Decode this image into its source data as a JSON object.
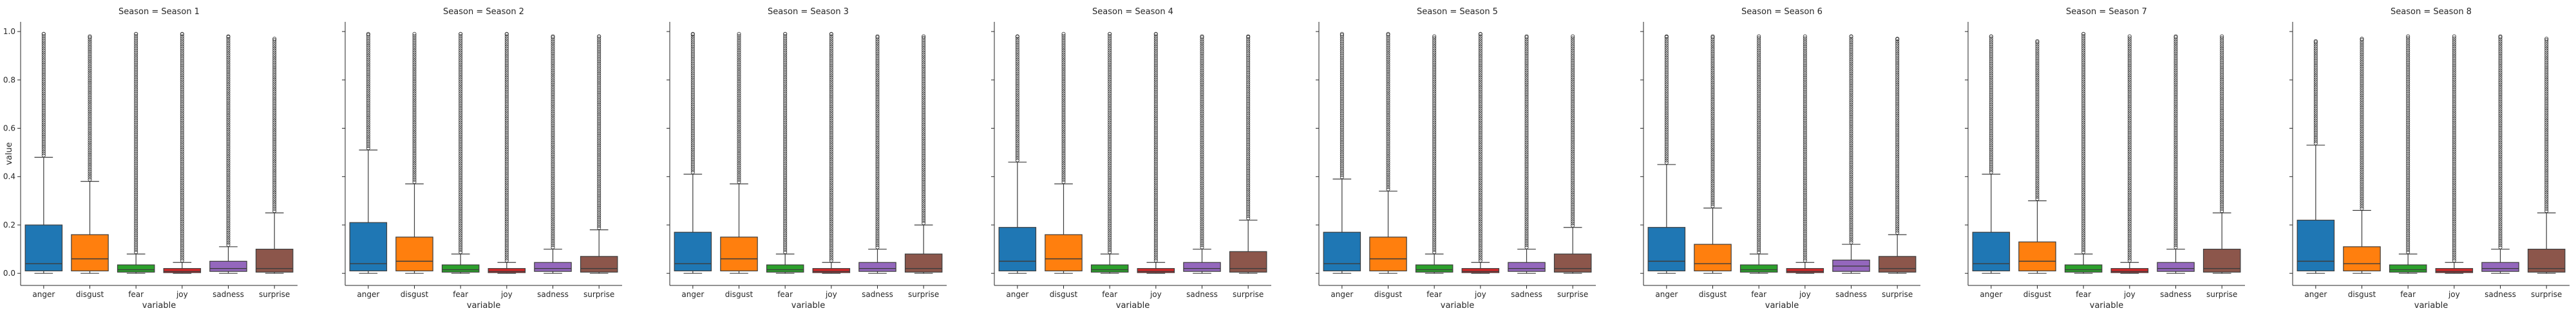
{
  "chart_data": {
    "type": "box",
    "facet_titles": [
      "Season = Season 1",
      "Season = Season 2",
      "Season = Season 3",
      "Season = Season 4",
      "Season = Season 5",
      "Season = Season 6",
      "Season = Season 7",
      "Season = Season 8"
    ],
    "xlabel": "variable",
    "ylabel": "value",
    "categories": [
      "anger",
      "disgust",
      "fear",
      "joy",
      "sadness",
      "surprise"
    ],
    "yticks": [
      "0.0",
      "0.2",
      "0.4",
      "0.6",
      "0.8",
      "1.0"
    ],
    "ylim": [
      -0.05,
      1.04
    ],
    "colors": {
      "anger": "#1f77b4",
      "disgust": "#ff7f0e",
      "fear": "#2ca02c",
      "joy": "#d62728",
      "sadness": "#9467bd",
      "surprise": "#8c564b"
    },
    "panels": [
      {
        "boxes": {
          "anger": {
            "q1": 0.01,
            "median": 0.04,
            "q3": 0.2,
            "whisker_low": 0.0,
            "whisker_high": 0.48,
            "outliers_from": 0.48,
            "outliers_to": 0.99
          },
          "disgust": {
            "q1": 0.01,
            "median": 0.06,
            "q3": 0.16,
            "whisker_low": 0.0,
            "whisker_high": 0.38,
            "outliers_from": 0.38,
            "outliers_to": 0.98
          },
          "fear": {
            "q1": 0.005,
            "median": 0.015,
            "q3": 0.035,
            "whisker_low": 0.0,
            "whisker_high": 0.08,
            "outliers_from": 0.08,
            "outliers_to": 0.99
          },
          "joy": {
            "q1": 0.003,
            "median": 0.008,
            "q3": 0.02,
            "whisker_low": 0.0,
            "whisker_high": 0.045,
            "outliers_from": 0.045,
            "outliers_to": 0.99
          },
          "sadness": {
            "q1": 0.008,
            "median": 0.02,
            "q3": 0.05,
            "whisker_low": 0.0,
            "whisker_high": 0.11,
            "outliers_from": 0.11,
            "outliers_to": 0.98
          },
          "surprise": {
            "q1": 0.005,
            "median": 0.02,
            "q3": 0.1,
            "whisker_low": 0.0,
            "whisker_high": 0.25,
            "outliers_from": 0.25,
            "outliers_to": 0.97
          }
        }
      },
      {
        "boxes": {
          "anger": {
            "q1": 0.01,
            "median": 0.04,
            "q3": 0.21,
            "whisker_low": 0.0,
            "whisker_high": 0.51,
            "outliers_from": 0.51,
            "outliers_to": 0.99
          },
          "disgust": {
            "q1": 0.01,
            "median": 0.05,
            "q3": 0.15,
            "whisker_low": 0.0,
            "whisker_high": 0.37,
            "outliers_from": 0.37,
            "outliers_to": 0.99
          },
          "fear": {
            "q1": 0.005,
            "median": 0.015,
            "q3": 0.035,
            "whisker_low": 0.0,
            "whisker_high": 0.08,
            "outliers_from": 0.08,
            "outliers_to": 0.99
          },
          "joy": {
            "q1": 0.003,
            "median": 0.008,
            "q3": 0.02,
            "whisker_low": 0.0,
            "whisker_high": 0.045,
            "outliers_from": 0.045,
            "outliers_to": 0.99
          },
          "sadness": {
            "q1": 0.008,
            "median": 0.02,
            "q3": 0.045,
            "whisker_low": 0.0,
            "whisker_high": 0.1,
            "outliers_from": 0.1,
            "outliers_to": 0.98
          },
          "surprise": {
            "q1": 0.005,
            "median": 0.02,
            "q3": 0.07,
            "whisker_low": 0.0,
            "whisker_high": 0.18,
            "outliers_from": 0.18,
            "outliers_to": 0.98
          }
        }
      },
      {
        "boxes": {
          "anger": {
            "q1": 0.01,
            "median": 0.04,
            "q3": 0.17,
            "whisker_low": 0.0,
            "whisker_high": 0.41,
            "outliers_from": 0.41,
            "outliers_to": 0.99
          },
          "disgust": {
            "q1": 0.01,
            "median": 0.06,
            "q3": 0.15,
            "whisker_low": 0.0,
            "whisker_high": 0.37,
            "outliers_from": 0.37,
            "outliers_to": 0.99
          },
          "fear": {
            "q1": 0.005,
            "median": 0.015,
            "q3": 0.035,
            "whisker_low": 0.0,
            "whisker_high": 0.08,
            "outliers_from": 0.08,
            "outliers_to": 0.99
          },
          "joy": {
            "q1": 0.003,
            "median": 0.008,
            "q3": 0.02,
            "whisker_low": 0.0,
            "whisker_high": 0.045,
            "outliers_from": 0.045,
            "outliers_to": 0.99
          },
          "sadness": {
            "q1": 0.008,
            "median": 0.02,
            "q3": 0.045,
            "whisker_low": 0.0,
            "whisker_high": 0.1,
            "outliers_from": 0.1,
            "outliers_to": 0.98
          },
          "surprise": {
            "q1": 0.005,
            "median": 0.02,
            "q3": 0.08,
            "whisker_low": 0.0,
            "whisker_high": 0.2,
            "outliers_from": 0.2,
            "outliers_to": 0.98
          }
        }
      },
      {
        "boxes": {
          "anger": {
            "q1": 0.01,
            "median": 0.05,
            "q3": 0.19,
            "whisker_low": 0.0,
            "whisker_high": 0.46,
            "outliers_from": 0.46,
            "outliers_to": 0.98
          },
          "disgust": {
            "q1": 0.01,
            "median": 0.06,
            "q3": 0.16,
            "whisker_low": 0.0,
            "whisker_high": 0.37,
            "outliers_from": 0.37,
            "outliers_to": 0.99
          },
          "fear": {
            "q1": 0.005,
            "median": 0.015,
            "q3": 0.035,
            "whisker_low": 0.0,
            "whisker_high": 0.08,
            "outliers_from": 0.08,
            "outliers_to": 0.99
          },
          "joy": {
            "q1": 0.003,
            "median": 0.008,
            "q3": 0.02,
            "whisker_low": 0.0,
            "whisker_high": 0.045,
            "outliers_from": 0.045,
            "outliers_to": 0.99
          },
          "sadness": {
            "q1": 0.008,
            "median": 0.02,
            "q3": 0.045,
            "whisker_low": 0.0,
            "whisker_high": 0.1,
            "outliers_from": 0.1,
            "outliers_to": 0.98
          },
          "surprise": {
            "q1": 0.005,
            "median": 0.02,
            "q3": 0.09,
            "whisker_low": 0.0,
            "whisker_high": 0.22,
            "outliers_from": 0.22,
            "outliers_to": 0.98
          }
        }
      },
      {
        "boxes": {
          "anger": {
            "q1": 0.01,
            "median": 0.04,
            "q3": 0.17,
            "whisker_low": 0.0,
            "whisker_high": 0.39,
            "outliers_from": 0.39,
            "outliers_to": 0.99
          },
          "disgust": {
            "q1": 0.01,
            "median": 0.06,
            "q3": 0.15,
            "whisker_low": 0.0,
            "whisker_high": 0.34,
            "outliers_from": 0.34,
            "outliers_to": 0.99
          },
          "fear": {
            "q1": 0.005,
            "median": 0.015,
            "q3": 0.035,
            "whisker_low": 0.0,
            "whisker_high": 0.08,
            "outliers_from": 0.08,
            "outliers_to": 0.98
          },
          "joy": {
            "q1": 0.003,
            "median": 0.008,
            "q3": 0.02,
            "whisker_low": 0.0,
            "whisker_high": 0.045,
            "outliers_from": 0.045,
            "outliers_to": 0.99
          },
          "sadness": {
            "q1": 0.008,
            "median": 0.02,
            "q3": 0.045,
            "whisker_low": 0.0,
            "whisker_high": 0.1,
            "outliers_from": 0.1,
            "outliers_to": 0.98
          },
          "surprise": {
            "q1": 0.005,
            "median": 0.02,
            "q3": 0.08,
            "whisker_low": 0.0,
            "whisker_high": 0.19,
            "outliers_from": 0.19,
            "outliers_to": 0.98
          }
        }
      },
      {
        "boxes": {
          "anger": {
            "q1": 0.01,
            "median": 0.05,
            "q3": 0.19,
            "whisker_low": 0.0,
            "whisker_high": 0.45,
            "outliers_from": 0.45,
            "outliers_to": 0.98
          },
          "disgust": {
            "q1": 0.01,
            "median": 0.04,
            "q3": 0.12,
            "whisker_low": 0.0,
            "whisker_high": 0.27,
            "outliers_from": 0.27,
            "outliers_to": 0.98
          },
          "fear": {
            "q1": 0.005,
            "median": 0.015,
            "q3": 0.035,
            "whisker_low": 0.0,
            "whisker_high": 0.08,
            "outliers_from": 0.08,
            "outliers_to": 0.98
          },
          "joy": {
            "q1": 0.003,
            "median": 0.008,
            "q3": 0.02,
            "whisker_low": 0.0,
            "whisker_high": 0.045,
            "outliers_from": 0.045,
            "outliers_to": 0.98
          },
          "sadness": {
            "q1": 0.008,
            "median": 0.03,
            "q3": 0.055,
            "whisker_low": 0.0,
            "whisker_high": 0.12,
            "outliers_from": 0.12,
            "outliers_to": 0.98
          },
          "surprise": {
            "q1": 0.005,
            "median": 0.02,
            "q3": 0.07,
            "whisker_low": 0.0,
            "whisker_high": 0.16,
            "outliers_from": 0.16,
            "outliers_to": 0.97
          }
        }
      },
      {
        "boxes": {
          "anger": {
            "q1": 0.01,
            "median": 0.04,
            "q3": 0.17,
            "whisker_low": 0.0,
            "whisker_high": 0.41,
            "outliers_from": 0.41,
            "outliers_to": 0.98
          },
          "disgust": {
            "q1": 0.01,
            "median": 0.05,
            "q3": 0.13,
            "whisker_low": 0.0,
            "whisker_high": 0.3,
            "outliers_from": 0.3,
            "outliers_to": 0.96
          },
          "fear": {
            "q1": 0.005,
            "median": 0.015,
            "q3": 0.035,
            "whisker_low": 0.0,
            "whisker_high": 0.08,
            "outliers_from": 0.08,
            "outliers_to": 0.99
          },
          "joy": {
            "q1": 0.003,
            "median": 0.008,
            "q3": 0.02,
            "whisker_low": 0.0,
            "whisker_high": 0.045,
            "outliers_from": 0.045,
            "outliers_to": 0.98
          },
          "sadness": {
            "q1": 0.008,
            "median": 0.02,
            "q3": 0.045,
            "whisker_low": 0.0,
            "whisker_high": 0.1,
            "outliers_from": 0.1,
            "outliers_to": 0.98
          },
          "surprise": {
            "q1": 0.005,
            "median": 0.02,
            "q3": 0.1,
            "whisker_low": 0.0,
            "whisker_high": 0.25,
            "outliers_from": 0.25,
            "outliers_to": 0.98
          }
        }
      },
      {
        "boxes": {
          "anger": {
            "q1": 0.01,
            "median": 0.05,
            "q3": 0.22,
            "whisker_low": 0.0,
            "whisker_high": 0.53,
            "outliers_from": 0.53,
            "outliers_to": 0.96
          },
          "disgust": {
            "q1": 0.01,
            "median": 0.04,
            "q3": 0.11,
            "whisker_low": 0.0,
            "whisker_high": 0.26,
            "outliers_from": 0.26,
            "outliers_to": 0.97
          },
          "fear": {
            "q1": 0.005,
            "median": 0.015,
            "q3": 0.035,
            "whisker_low": 0.0,
            "whisker_high": 0.08,
            "outliers_from": 0.08,
            "outliers_to": 0.98
          },
          "joy": {
            "q1": 0.003,
            "median": 0.008,
            "q3": 0.02,
            "whisker_low": 0.0,
            "whisker_high": 0.045,
            "outliers_from": 0.045,
            "outliers_to": 0.98
          },
          "sadness": {
            "q1": 0.008,
            "median": 0.02,
            "q3": 0.045,
            "whisker_low": 0.0,
            "whisker_high": 0.1,
            "outliers_from": 0.1,
            "outliers_to": 0.98
          },
          "surprise": {
            "q1": 0.005,
            "median": 0.02,
            "q3": 0.1,
            "whisker_low": 0.0,
            "whisker_high": 0.25,
            "outliers_from": 0.25,
            "outliers_to": 0.97
          }
        }
      }
    ]
  }
}
